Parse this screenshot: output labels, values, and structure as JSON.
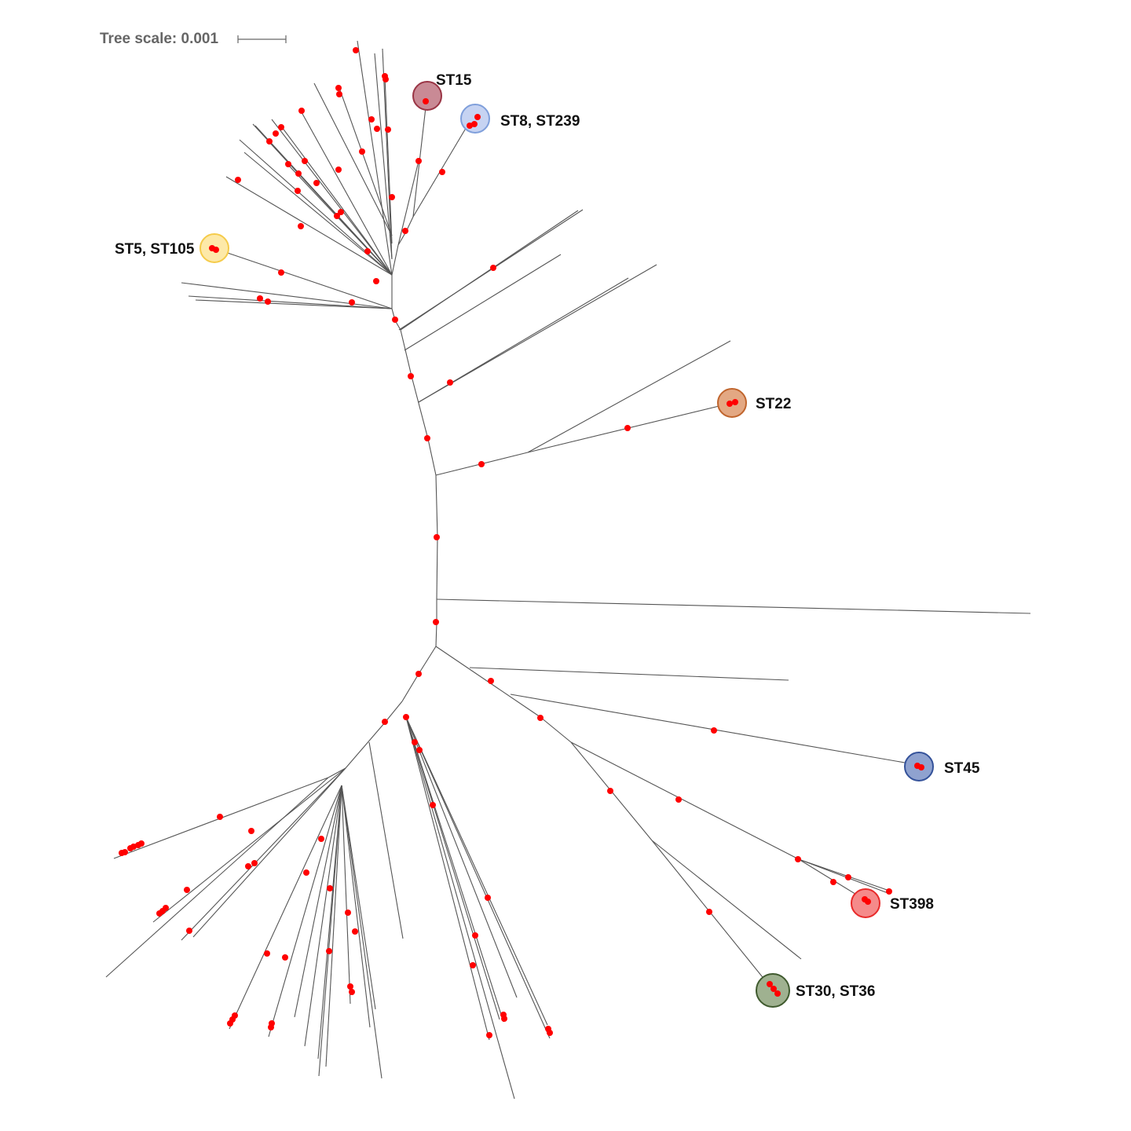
{
  "scale": {
    "label": "Tree scale: 0.001"
  },
  "clades": [
    {
      "id": "st15",
      "label": "ST15",
      "fill": "#c98a95",
      "stroke": "#9a3545"
    },
    {
      "id": "st8",
      "label": "ST8, ST239",
      "fill": "#c6d3f2",
      "stroke": "#7f9fdb"
    },
    {
      "id": "st5",
      "label": "ST5, ST105",
      "fill": "#fde9a8",
      "stroke": "#f5cb4a"
    },
    {
      "id": "st22",
      "label": "ST22",
      "fill": "#e3a883",
      "stroke": "#c0652d"
    },
    {
      "id": "st45",
      "label": "ST45",
      "fill": "#8fa2cf",
      "stroke": "#34529a"
    },
    {
      "id": "st398",
      "label": "ST398",
      "fill": "#f58a8a",
      "stroke": "#e82a2a"
    },
    {
      "id": "st30",
      "label": "ST30, ST36",
      "fill": "#9fb190",
      "stroke": "#3f5a2e"
    }
  ],
  "colors": {
    "branch": "#555555",
    "node": "#ff0000"
  }
}
